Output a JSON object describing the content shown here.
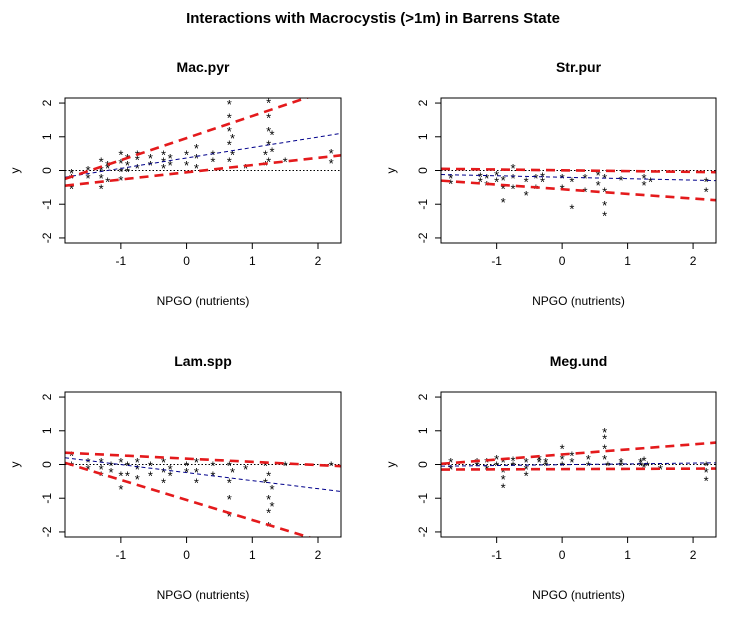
{
  "figure_title": "Interactions with Macrocystis (>1m) in Barrens State",
  "chart_data": [
    {
      "type": "scatter",
      "title": "Mac.pyr",
      "xlabel": "NPGO (nutrients)",
      "ylabel": "y",
      "xlim": [
        -1.85,
        2.35
      ],
      "ylim": [
        -2.15,
        2.15
      ],
      "xticks": [
        -1,
        0,
        1,
        2
      ],
      "yticks": [
        -2,
        -1,
        0,
        1,
        2
      ],
      "zero_line": 0,
      "lines": [
        {
          "role": "mean",
          "color": "#00008b",
          "style": "dashed",
          "x": [
            -1.85,
            2.35
          ],
          "y": [
            -0.2,
            1.1
          ]
        },
        {
          "role": "upper",
          "color": "#e41a1c",
          "style": "dashed",
          "x": [
            -1.85,
            2.35
          ],
          "y": [
            -0.25,
            2.5
          ]
        },
        {
          "role": "lower",
          "color": "#e41a1c",
          "style": "dashed",
          "x": [
            -1.85,
            2.35
          ],
          "y": [
            -0.45,
            0.45
          ]
        }
      ],
      "points": [
        {
          "x": -1.75,
          "y": -0.5
        },
        {
          "x": -1.75,
          "y": -0.2
        },
        {
          "x": -1.75,
          "y": -0.05
        },
        {
          "x": -1.5,
          "y": -0.2
        },
        {
          "x": -1.5,
          "y": 0.05
        },
        {
          "x": -1.3,
          "y": -0.5
        },
        {
          "x": -1.3,
          "y": -0.2
        },
        {
          "x": -1.3,
          "y": 0.05
        },
        {
          "x": -1.3,
          "y": 0.3
        },
        {
          "x": -1.2,
          "y": -0.3
        },
        {
          "x": -1.2,
          "y": 0.1
        },
        {
          "x": -1.2,
          "y": 0.2
        },
        {
          "x": -1.0,
          "y": -0.25
        },
        {
          "x": -1.0,
          "y": 0.0
        },
        {
          "x": -1.0,
          "y": 0.25
        },
        {
          "x": -1.0,
          "y": 0.5
        },
        {
          "x": -0.9,
          "y": 0.0
        },
        {
          "x": -0.9,
          "y": 0.2
        },
        {
          "x": -0.9,
          "y": 0.4
        },
        {
          "x": -0.75,
          "y": 0.1
        },
        {
          "x": -0.75,
          "y": 0.35
        },
        {
          "x": -0.75,
          "y": 0.5
        },
        {
          "x": -0.55,
          "y": 0.2
        },
        {
          "x": -0.55,
          "y": 0.4
        },
        {
          "x": -0.35,
          "y": 0.1
        },
        {
          "x": -0.35,
          "y": 0.3
        },
        {
          "x": -0.35,
          "y": 0.5
        },
        {
          "x": -0.25,
          "y": 0.2
        },
        {
          "x": -0.25,
          "y": 0.4
        },
        {
          "x": 0.0,
          "y": 0.2
        },
        {
          "x": 0.0,
          "y": 0.5
        },
        {
          "x": 0.15,
          "y": 0.1
        },
        {
          "x": 0.15,
          "y": 0.4
        },
        {
          "x": 0.15,
          "y": 0.7
        },
        {
          "x": 0.4,
          "y": 0.3
        },
        {
          "x": 0.4,
          "y": 0.5
        },
        {
          "x": 0.65,
          "y": 0.3
        },
        {
          "x": 0.65,
          "y": 0.8
        },
        {
          "x": 0.65,
          "y": 1.2
        },
        {
          "x": 0.65,
          "y": 1.6
        },
        {
          "x": 0.65,
          "y": 2.0
        },
        {
          "x": 0.7,
          "y": 0.5
        },
        {
          "x": 0.7,
          "y": 1.0
        },
        {
          "x": 0.9,
          "y": 0.1
        },
        {
          "x": 1.2,
          "y": 0.2
        },
        {
          "x": 1.2,
          "y": 0.5
        },
        {
          "x": 1.25,
          "y": 0.3
        },
        {
          "x": 1.25,
          "y": 0.8
        },
        {
          "x": 1.25,
          "y": 1.2
        },
        {
          "x": 1.25,
          "y": 1.6
        },
        {
          "x": 1.25,
          "y": 2.05
        },
        {
          "x": 1.3,
          "y": 0.6
        },
        {
          "x": 1.3,
          "y": 1.1
        },
        {
          "x": 1.5,
          "y": 0.3
        },
        {
          "x": 2.2,
          "y": 0.25
        },
        {
          "x": 2.2,
          "y": 0.55
        }
      ]
    },
    {
      "type": "scatter",
      "title": "Str.pur",
      "xlabel": "NPGO (nutrients)",
      "ylabel": "y",
      "xlim": [
        -1.85,
        2.35
      ],
      "ylim": [
        -2.15,
        2.15
      ],
      "xticks": [
        -1,
        0,
        1,
        2
      ],
      "yticks": [
        -2,
        -1,
        0,
        1,
        2
      ],
      "zero_line": 0,
      "lines": [
        {
          "role": "mean",
          "color": "#00008b",
          "style": "dashed",
          "x": [
            -1.85,
            2.35
          ],
          "y": [
            -0.12,
            -0.3
          ]
        },
        {
          "role": "upper",
          "color": "#e41a1c",
          "style": "dashed",
          "x": [
            -1.85,
            2.35
          ],
          "y": [
            0.05,
            -0.05
          ]
        },
        {
          "role": "lower",
          "color": "#e41a1c",
          "style": "dashed",
          "x": [
            -1.85,
            2.35
          ],
          "y": [
            -0.3,
            -0.88
          ]
        }
      ],
      "points": [
        {
          "x": -1.7,
          "y": -0.2
        },
        {
          "x": -1.7,
          "y": -0.35
        },
        {
          "x": -1.25,
          "y": -0.15
        },
        {
          "x": -1.25,
          "y": -0.3
        },
        {
          "x": -1.15,
          "y": -0.2
        },
        {
          "x": -1.15,
          "y": -0.4
        },
        {
          "x": -1.0,
          "y": -0.3
        },
        {
          "x": -1.0,
          "y": -0.1
        },
        {
          "x": -0.9,
          "y": -0.25
        },
        {
          "x": -0.9,
          "y": -0.9
        },
        {
          "x": -0.9,
          "y": -0.5
        },
        {
          "x": -0.75,
          "y": -0.2
        },
        {
          "x": -0.75,
          "y": -0.5
        },
        {
          "x": -0.75,
          "y": 0.1
        },
        {
          "x": -0.55,
          "y": -0.3
        },
        {
          "x": -0.55,
          "y": -0.7
        },
        {
          "x": -0.4,
          "y": -0.2
        },
        {
          "x": -0.4,
          "y": -0.5
        },
        {
          "x": -0.3,
          "y": -0.15
        },
        {
          "x": -0.3,
          "y": -0.3
        },
        {
          "x": 0.0,
          "y": -0.2
        },
        {
          "x": 0.0,
          "y": -0.5
        },
        {
          "x": 0.15,
          "y": -0.3
        },
        {
          "x": 0.15,
          "y": -1.1
        },
        {
          "x": 0.35,
          "y": -0.2
        },
        {
          "x": 0.35,
          "y": -0.6
        },
        {
          "x": 0.55,
          "y": -0.1
        },
        {
          "x": 0.55,
          "y": -0.4
        },
        {
          "x": 0.65,
          "y": -0.2
        },
        {
          "x": 0.65,
          "y": -0.6
        },
        {
          "x": 0.65,
          "y": -1.0
        },
        {
          "x": 0.65,
          "y": -1.3
        },
        {
          "x": 0.9,
          "y": -0.25
        },
        {
          "x": 1.25,
          "y": -0.2
        },
        {
          "x": 1.25,
          "y": -0.4
        },
        {
          "x": 1.35,
          "y": -0.3
        },
        {
          "x": 2.2,
          "y": -0.3
        },
        {
          "x": 2.2,
          "y": -0.6
        }
      ]
    },
    {
      "type": "scatter",
      "title": "Lam.spp",
      "xlabel": "NPGO (nutrients)",
      "ylabel": "y",
      "xlim": [
        -1.85,
        2.35
      ],
      "ylim": [
        -2.15,
        2.15
      ],
      "xticks": [
        -1,
        0,
        1,
        2
      ],
      "yticks": [
        -2,
        -1,
        0,
        1,
        2
      ],
      "zero_line": 0,
      "lines": [
        {
          "role": "mean",
          "color": "#00008b",
          "style": "dashed",
          "x": [
            -1.85,
            2.35
          ],
          "y": [
            0.2,
            -0.8
          ]
        },
        {
          "role": "upper",
          "color": "#e41a1c",
          "style": "dashed",
          "x": [
            -1.85,
            2.35
          ],
          "y": [
            0.35,
            -0.05
          ]
        },
        {
          "role": "lower",
          "color": "#e41a1c",
          "style": "dashed",
          "x": [
            -1.85,
            2.35
          ],
          "y": [
            0.05,
            -2.45
          ]
        }
      ],
      "points": [
        {
          "x": -1.75,
          "y": 0.3
        },
        {
          "x": -1.75,
          "y": 0.0
        },
        {
          "x": -1.5,
          "y": 0.1
        },
        {
          "x": -1.5,
          "y": -0.1
        },
        {
          "x": -1.3,
          "y": 0.1
        },
        {
          "x": -1.3,
          "y": -0.1
        },
        {
          "x": -1.3,
          "y": -0.3
        },
        {
          "x": -1.15,
          "y": 0.0
        },
        {
          "x": -1.15,
          "y": -0.2
        },
        {
          "x": -1.0,
          "y": 0.1
        },
        {
          "x": -1.0,
          "y": -0.3
        },
        {
          "x": -1.0,
          "y": -0.7
        },
        {
          "x": -0.9,
          "y": 0.0
        },
        {
          "x": -0.9,
          "y": -0.3
        },
        {
          "x": -0.75,
          "y": 0.1
        },
        {
          "x": -0.75,
          "y": -0.1
        },
        {
          "x": -0.75,
          "y": -0.4
        },
        {
          "x": -0.55,
          "y": 0.0
        },
        {
          "x": -0.55,
          "y": -0.3
        },
        {
          "x": -0.35,
          "y": 0.1
        },
        {
          "x": -0.35,
          "y": -0.2
        },
        {
          "x": -0.35,
          "y": -0.5
        },
        {
          "x": -0.25,
          "y": -0.1
        },
        {
          "x": -0.25,
          "y": -0.3
        },
        {
          "x": 0.0,
          "y": 0.0
        },
        {
          "x": 0.0,
          "y": -0.2
        },
        {
          "x": 0.15,
          "y": 0.1
        },
        {
          "x": 0.15,
          "y": -0.2
        },
        {
          "x": 0.15,
          "y": -0.5
        },
        {
          "x": 0.4,
          "y": 0.0
        },
        {
          "x": 0.4,
          "y": -0.3
        },
        {
          "x": 0.65,
          "y": 0.0
        },
        {
          "x": 0.65,
          "y": -0.5
        },
        {
          "x": 0.65,
          "y": -1.0
        },
        {
          "x": 0.65,
          "y": -1.5
        },
        {
          "x": 0.7,
          "y": -0.2
        },
        {
          "x": 0.9,
          "y": -0.1
        },
        {
          "x": 1.2,
          "y": 0.0
        },
        {
          "x": 1.2,
          "y": -0.5
        },
        {
          "x": 1.25,
          "y": -0.3
        },
        {
          "x": 1.25,
          "y": -1.0
        },
        {
          "x": 1.25,
          "y": -1.4
        },
        {
          "x": 1.25,
          "y": -1.8
        },
        {
          "x": 1.3,
          "y": -0.7
        },
        {
          "x": 1.3,
          "y": -1.2
        },
        {
          "x": 1.5,
          "y": 0.0
        },
        {
          "x": 2.2,
          "y": 0.0
        }
      ]
    },
    {
      "type": "scatter",
      "title": "Meg.und",
      "xlabel": "NPGO (nutrients)",
      "ylabel": "y",
      "xlim": [
        -1.85,
        2.35
      ],
      "ylim": [
        -2.15,
        2.15
      ],
      "xticks": [
        -1,
        0,
        1,
        2
      ],
      "yticks": [
        -2,
        -1,
        0,
        1,
        2
      ],
      "zero_line": 0,
      "lines": [
        {
          "role": "mean",
          "color": "#00008b",
          "style": "dashed",
          "x": [
            -1.85,
            2.35
          ],
          "y": [
            -0.05,
            0.05
          ]
        },
        {
          "role": "upper",
          "color": "#e41a1c",
          "style": "dashed",
          "x": [
            -1.85,
            2.35
          ],
          "y": [
            0.02,
            0.65
          ]
        },
        {
          "role": "lower",
          "color": "#e41a1c",
          "style": "dashed",
          "x": [
            -1.85,
            2.35
          ],
          "y": [
            -0.15,
            -0.12
          ]
        }
      ],
      "points": [
        {
          "x": -1.7,
          "y": 0.1
        },
        {
          "x": -1.7,
          "y": -0.1
        },
        {
          "x": -1.3,
          "y": 0.0
        },
        {
          "x": -1.3,
          "y": 0.1
        },
        {
          "x": -1.15,
          "y": -0.1
        },
        {
          "x": -1.15,
          "y": 0.1
        },
        {
          "x": -1.0,
          "y": 0.0
        },
        {
          "x": -1.0,
          "y": 0.2
        },
        {
          "x": -0.9,
          "y": -0.2
        },
        {
          "x": -0.9,
          "y": -0.4
        },
        {
          "x": -0.9,
          "y": -0.65
        },
        {
          "x": -0.9,
          "y": 0.1
        },
        {
          "x": -0.75,
          "y": 0.0
        },
        {
          "x": -0.75,
          "y": 0.15
        },
        {
          "x": -0.55,
          "y": -0.1
        },
        {
          "x": -0.55,
          "y": -0.3
        },
        {
          "x": -0.55,
          "y": 0.1
        },
        {
          "x": -0.35,
          "y": 0.1
        },
        {
          "x": -0.35,
          "y": 0.2
        },
        {
          "x": -0.25,
          "y": 0.0
        },
        {
          "x": -0.25,
          "y": 0.1
        },
        {
          "x": 0.0,
          "y": 0.0
        },
        {
          "x": 0.0,
          "y": 0.2
        },
        {
          "x": 0.0,
          "y": 0.5
        },
        {
          "x": 0.15,
          "y": 0.1
        },
        {
          "x": 0.15,
          "y": 0.3
        },
        {
          "x": 0.4,
          "y": 0.0
        },
        {
          "x": 0.4,
          "y": 0.2
        },
        {
          "x": 0.65,
          "y": 0.2
        },
        {
          "x": 0.65,
          "y": 0.5
        },
        {
          "x": 0.65,
          "y": 0.8
        },
        {
          "x": 0.65,
          "y": 1.0
        },
        {
          "x": 0.7,
          "y": 0.0
        },
        {
          "x": 0.9,
          "y": 0.0
        },
        {
          "x": 0.9,
          "y": 0.1
        },
        {
          "x": 1.2,
          "y": 0.0
        },
        {
          "x": 1.2,
          "y": 0.1
        },
        {
          "x": 1.25,
          "y": 0.15
        },
        {
          "x": 1.25,
          "y": -0.05
        },
        {
          "x": 1.3,
          "y": 0.0
        },
        {
          "x": 1.5,
          "y": -0.1
        },
        {
          "x": 2.2,
          "y": 0.0
        },
        {
          "x": 2.2,
          "y": -0.2
        },
        {
          "x": 2.2,
          "y": -0.45
        }
      ]
    }
  ]
}
